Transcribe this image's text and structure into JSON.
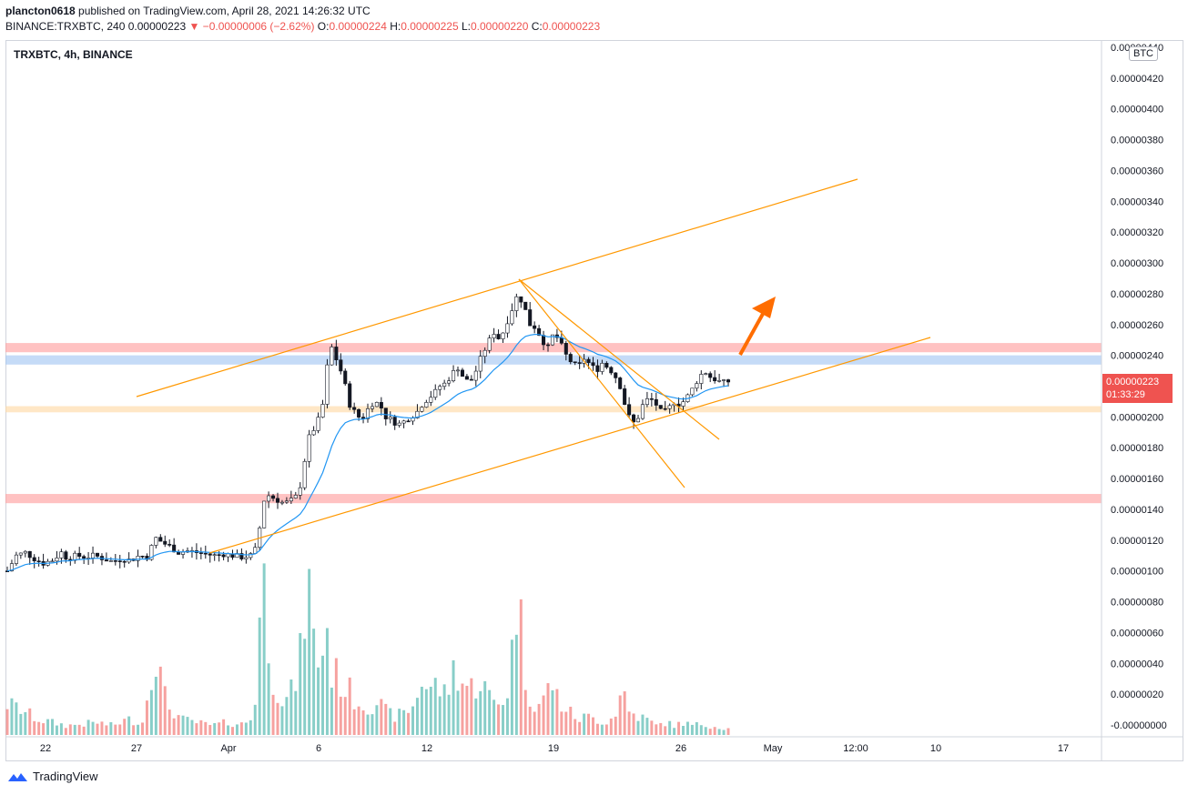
{
  "header": {
    "line1_user": "plancton0618",
    "line1_rest": "published on TradingView.com, April 28, 2021 14:26:32 UTC",
    "symbol": "BINANCE:TRXBTC, 240",
    "last": "0.00000223",
    "change": "▼ −0.00000006 (−2.62%)",
    "o_label": "O:",
    "o_value": "0.00000224",
    "h_label": "H:",
    "h_value": "0.00000225",
    "l_label": "L:",
    "l_value": "0.00000220",
    "c_label": "C:",
    "c_value": "0.00000223"
  },
  "legend": "TRXBTC, 4h, BINANCE",
  "price_tag": {
    "price": "0.00000223",
    "countdown": "01:33:29"
  },
  "currency": "BTC",
  "footer": {
    "brand": "TradingView"
  },
  "colors": {
    "up": "#26a69a",
    "down": "#ef5350",
    "ma": "#2196f3",
    "trend": "#ff9800",
    "arrow": "#ff6d00"
  },
  "chart_data": {
    "type": "candlestick",
    "symbol": "TRXBTC",
    "interval": "4h",
    "y_ticks": [
      "0.00000440",
      "0.00000420",
      "0.00000400",
      "0.00000380",
      "0.00000360",
      "0.00000340",
      "0.00000320",
      "0.00000300",
      "0.00000280",
      "0.00000260",
      "0.00000240",
      "0.00000220",
      "0.00000200",
      "0.00000180",
      "0.00000160",
      "0.00000140",
      "0.00000120",
      "0.00000100",
      "0.00000080",
      "0.00000060",
      "0.00000040",
      "0.00000020",
      "-0.00000000"
    ],
    "x_ticks": [
      "22",
      "27",
      "Apr",
      "6",
      "12",
      "19",
      "26",
      "May",
      "12:00",
      "10",
      "17"
    ],
    "ylim": [
      0.0,
      4.4e-06
    ],
    "close_path": [
      [
        0,
        1.0
      ],
      [
        6,
        1.1
      ],
      [
        12,
        1.12
      ],
      [
        18,
        1.08
      ],
      [
        24,
        1.05
      ],
      [
        30,
        1.07
      ],
      [
        36,
        1.12
      ],
      [
        40,
        1.08
      ],
      [
        46,
        1.1
      ],
      [
        52,
        1.09
      ],
      [
        58,
        1.1
      ],
      [
        64,
        1.08
      ],
      [
        70,
        1.06
      ],
      [
        76,
        1.08
      ],
      [
        82,
        1.07
      ],
      [
        88,
        1.1
      ],
      [
        94,
        1.09
      ],
      [
        98,
        1.22
      ],
      [
        104,
        1.18
      ],
      [
        108,
        1.16
      ],
      [
        114,
        1.12
      ],
      [
        120,
        1.13
      ],
      [
        126,
        1.12
      ],
      [
        132,
        1.11
      ],
      [
        138,
        1.1
      ],
      [
        144,
        1.11
      ],
      [
        150,
        1.1
      ],
      [
        156,
        1.09
      ],
      [
        162,
        1.1
      ],
      [
        166,
        1.15
      ],
      [
        168,
        1.28
      ],
      [
        170,
        1.42
      ],
      [
        172,
        1.5
      ],
      [
        176,
        1.48
      ],
      [
        180,
        1.46
      ],
      [
        184,
        1.44
      ],
      [
        188,
        1.45
      ],
      [
        192,
        1.48
      ],
      [
        196,
        1.58
      ],
      [
        198,
        1.72
      ],
      [
        200,
        1.85
      ],
      [
        204,
        1.92
      ],
      [
        208,
        2.0
      ],
      [
        210,
        2.08
      ],
      [
        212,
        2.25
      ],
      [
        214,
        2.4
      ],
      [
        216,
        2.45
      ],
      [
        218,
        2.4
      ],
      [
        220,
        2.35
      ],
      [
        222,
        2.3
      ],
      [
        224,
        2.25
      ],
      [
        226,
        2.15
      ],
      [
        228,
        2.08
      ],
      [
        232,
        2.02
      ],
      [
        236,
        1.98
      ],
      [
        240,
        2.05
      ],
      [
        244,
        2.1
      ],
      [
        248,
        2.08
      ],
      [
        252,
        2.0
      ],
      [
        256,
        1.98
      ],
      [
        260,
        1.95
      ],
      [
        264,
        1.97
      ],
      [
        268,
        2.0
      ],
      [
        272,
        2.02
      ],
      [
        276,
        2.08
      ],
      [
        280,
        2.12
      ],
      [
        284,
        2.15
      ],
      [
        288,
        2.2
      ],
      [
        292,
        2.22
      ],
      [
        296,
        2.28
      ],
      [
        300,
        2.32
      ],
      [
        304,
        2.25
      ],
      [
        308,
        2.22
      ],
      [
        312,
        2.3
      ],
      [
        316,
        2.4
      ],
      [
        320,
        2.48
      ],
      [
        324,
        2.55
      ],
      [
        328,
        2.5
      ],
      [
        332,
        2.6
      ],
      [
        336,
        2.7
      ],
      [
        340,
        2.8
      ],
      [
        344,
        2.72
      ],
      [
        348,
        2.6
      ],
      [
        352,
        2.58
      ],
      [
        356,
        2.5
      ],
      [
        360,
        2.45
      ],
      [
        364,
        2.55
      ],
      [
        368,
        2.48
      ],
      [
        372,
        2.4
      ],
      [
        376,
        2.35
      ],
      [
        380,
        2.32
      ],
      [
        384,
        2.38
      ],
      [
        388,
        2.34
      ],
      [
        392,
        2.3
      ],
      [
        396,
        2.35
      ],
      [
        400,
        2.32
      ],
      [
        404,
        2.28
      ],
      [
        408,
        2.2
      ],
      [
        412,
        2.05
      ],
      [
        416,
        1.95
      ],
      [
        420,
        2.0
      ],
      [
        424,
        2.1
      ],
      [
        428,
        2.12
      ],
      [
        432,
        2.08
      ],
      [
        436,
        2.02
      ],
      [
        440,
        2.05
      ],
      [
        444,
        2.1
      ],
      [
        448,
        2.08
      ],
      [
        452,
        2.12
      ],
      [
        456,
        2.18
      ],
      [
        460,
        2.25
      ],
      [
        464,
        2.3
      ],
      [
        468,
        2.26
      ],
      [
        472,
        2.24
      ],
      [
        476,
        2.22
      ],
      [
        480,
        2.23
      ]
    ],
    "volume_path": [
      [
        0,
        0.2
      ],
      [
        10,
        0.16
      ],
      [
        20,
        0.1
      ],
      [
        30,
        0.08
      ],
      [
        40,
        0.06
      ],
      [
        50,
        0.07
      ],
      [
        60,
        0.08
      ],
      [
        70,
        0.06
      ],
      [
        80,
        0.1
      ],
      [
        90,
        0.08
      ],
      [
        98,
        0.55
      ],
      [
        106,
        0.2
      ],
      [
        116,
        0.1
      ],
      [
        126,
        0.08
      ],
      [
        136,
        0.06
      ],
      [
        146,
        0.08
      ],
      [
        156,
        0.07
      ],
      [
        162,
        0.1
      ],
      [
        166,
        0.3
      ],
      [
        168,
        0.75
      ],
      [
        170,
        1.05
      ],
      [
        172,
        0.85
      ],
      [
        176,
        0.4
      ],
      [
        180,
        0.3
      ],
      [
        184,
        0.2
      ],
      [
        188,
        0.25
      ],
      [
        192,
        0.35
      ],
      [
        196,
        0.55
      ],
      [
        198,
        0.8
      ],
      [
        200,
        1.05
      ],
      [
        204,
        0.6
      ],
      [
        208,
        0.45
      ],
      [
        212,
        0.65
      ],
      [
        214,
        0.7
      ],
      [
        216,
        0.4
      ],
      [
        220,
        0.38
      ],
      [
        224,
        0.3
      ],
      [
        228,
        0.28
      ],
      [
        232,
        0.22
      ],
      [
        236,
        0.2
      ],
      [
        240,
        0.18
      ],
      [
        246,
        0.22
      ],
      [
        252,
        0.15
      ],
      [
        258,
        0.12
      ],
      [
        264,
        0.14
      ],
      [
        270,
        0.18
      ],
      [
        276,
        0.35
      ],
      [
        280,
        0.3
      ],
      [
        286,
        0.32
      ],
      [
        292,
        0.25
      ],
      [
        298,
        0.45
      ],
      [
        302,
        0.35
      ],
      [
        308,
        0.3
      ],
      [
        316,
        0.35
      ],
      [
        322,
        0.22
      ],
      [
        328,
        0.2
      ],
      [
        334,
        0.3
      ],
      [
        340,
        1.0
      ],
      [
        344,
        0.4
      ],
      [
        350,
        0.2
      ],
      [
        356,
        0.2
      ],
      [
        362,
        0.35
      ],
      [
        368,
        0.2
      ],
      [
        374,
        0.15
      ],
      [
        380,
        0.1
      ],
      [
        386,
        0.12
      ],
      [
        392,
        0.1
      ],
      [
        398,
        0.08
      ],
      [
        404,
        0.12
      ],
      [
        410,
        0.3
      ],
      [
        414,
        0.15
      ],
      [
        420,
        0.12
      ],
      [
        426,
        0.1
      ],
      [
        432,
        0.06
      ],
      [
        438,
        0.08
      ],
      [
        444,
        0.06
      ],
      [
        450,
        0.08
      ],
      [
        456,
        0.06
      ],
      [
        462,
        0.07
      ],
      [
        468,
        0.06
      ],
      [
        474,
        0.05
      ],
      [
        480,
        0.04
      ]
    ],
    "annotations": {
      "zones": [
        {
          "price_low": 2.42,
          "price_high": 2.48,
          "color": "#ff9a9a"
        },
        {
          "price_low": 2.34,
          "price_high": 2.4,
          "color": "#9fc3f2"
        },
        {
          "price_low": 2.03,
          "price_high": 2.07,
          "color": "#ffd7a0"
        },
        {
          "price_low": 1.44,
          "price_high": 1.5,
          "color": "#ff9a9a"
        }
      ]
    }
  }
}
